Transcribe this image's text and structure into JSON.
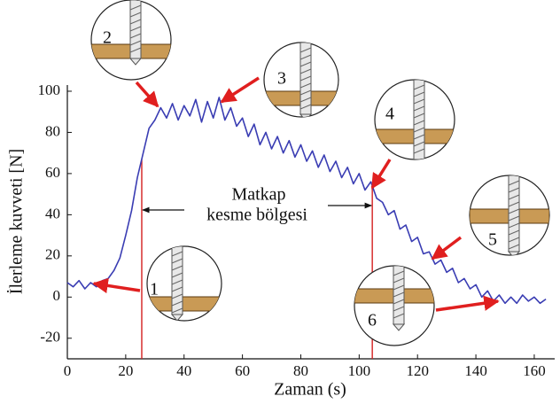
{
  "chart_data": {
    "type": "line",
    "xlabel": "Zaman (s)",
    "ylabel": "İlerleme kuvveti [N]",
    "x": [
      0,
      2,
      4,
      6,
      8,
      10,
      12,
      14,
      16,
      18,
      20,
      22,
      24,
      26,
      28,
      30,
      32,
      34,
      36,
      38,
      40,
      42,
      44,
      46,
      48,
      50,
      52,
      54,
      56,
      58,
      60,
      62,
      64,
      66,
      68,
      70,
      72,
      74,
      76,
      78,
      80,
      82,
      84,
      86,
      88,
      90,
      92,
      94,
      96,
      98,
      100,
      102,
      104,
      106,
      108,
      110,
      112,
      114,
      116,
      118,
      120,
      122,
      124,
      126,
      128,
      130,
      132,
      134,
      136,
      138,
      140,
      142,
      144,
      146,
      148,
      150,
      152,
      154,
      156,
      158,
      160,
      162,
      164
    ],
    "values": [
      7,
      5,
      8,
      4,
      7,
      5,
      8,
      9,
      13,
      19,
      30,
      42,
      58,
      70,
      82,
      86,
      92,
      87,
      94,
      86,
      93,
      88,
      96,
      85,
      95,
      87,
      97,
      86,
      92,
      83,
      87,
      78,
      84,
      74,
      80,
      72,
      78,
      70,
      76,
      68,
      74,
      66,
      71,
      63,
      69,
      61,
      66,
      58,
      63,
      55,
      60,
      52,
      56,
      48,
      46,
      40,
      42,
      33,
      35,
      27,
      29,
      21,
      22,
      16,
      18,
      12,
      14,
      7,
      9,
      4,
      6,
      0,
      3,
      -2,
      1,
      -3,
      0,
      -3,
      1,
      -2,
      0,
      -3,
      -1
    ],
    "color": "#3a3db3",
    "xlim": [
      0,
      167
    ],
    "ylim": [
      -30,
      103
    ],
    "xticks": [
      0,
      20,
      40,
      60,
      80,
      100,
      120,
      140,
      160
    ],
    "yticks": [
      -20,
      0,
      20,
      40,
      60,
      80,
      100
    ],
    "region": [
      25.5,
      104.5
    ],
    "region_label": [
      "Matkap",
      "kesme bölgesi"
    ],
    "annotations": [
      "1",
      "2",
      "3",
      "4",
      "5",
      "6"
    ]
  }
}
